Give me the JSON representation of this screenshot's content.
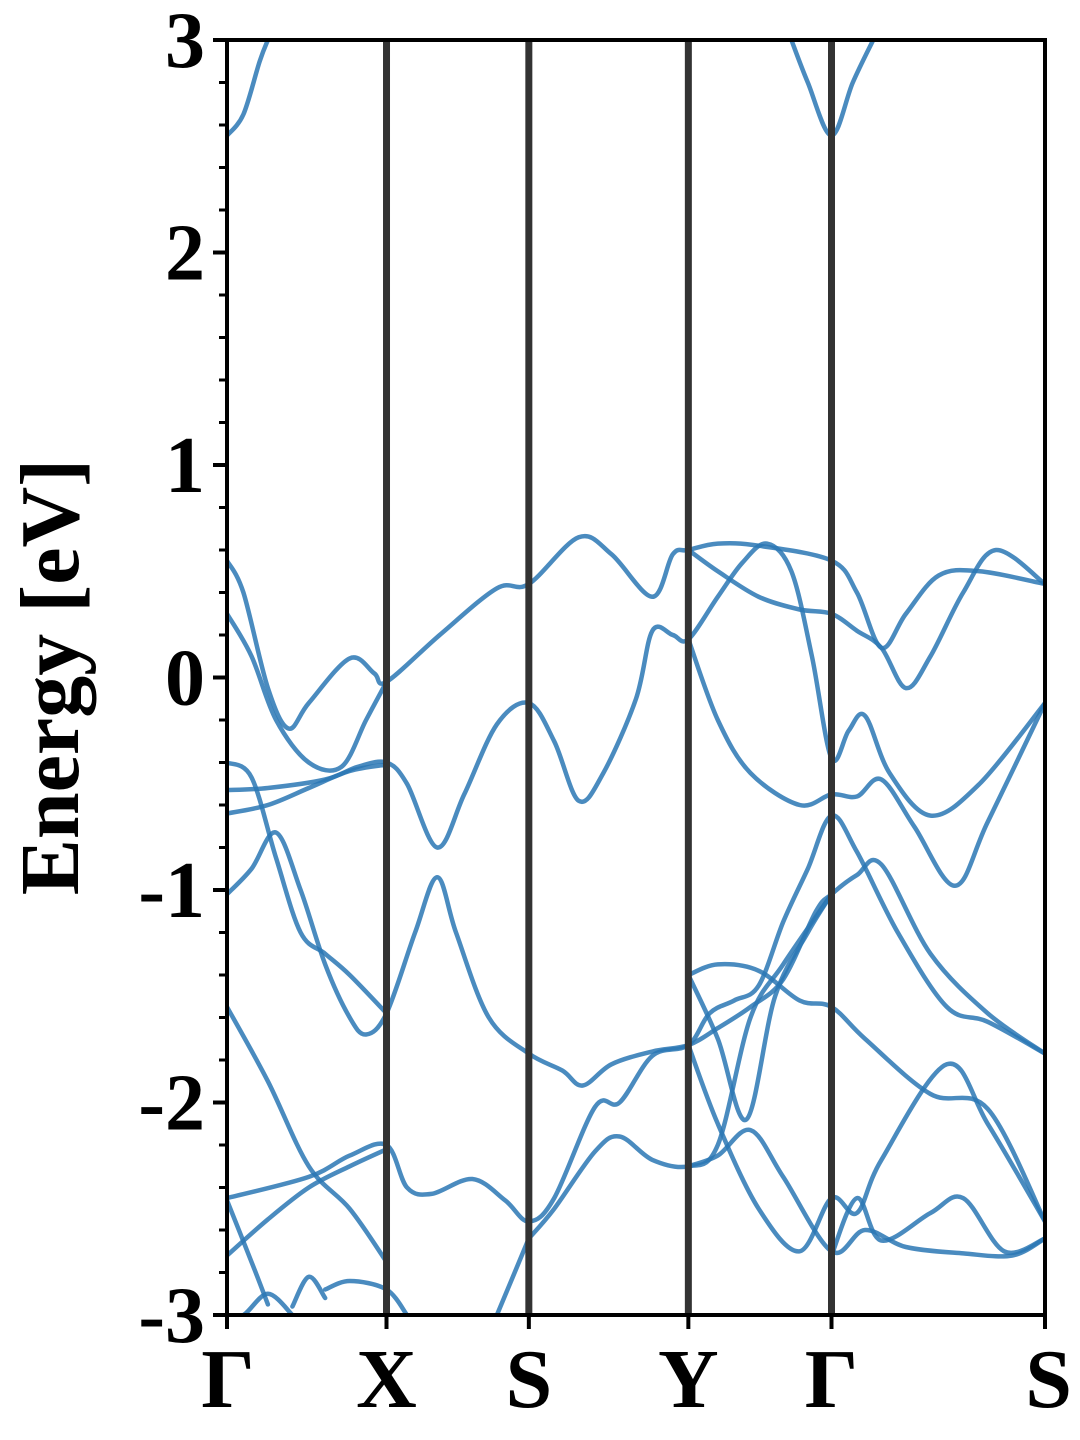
{
  "chart_data": {
    "type": "line",
    "title": "",
    "xlabel": "",
    "ylabel": "Energy [eV]",
    "ylim": [
      -3,
      3
    ],
    "yticks": [
      -3,
      -2,
      -1,
      0,
      1,
      2,
      3
    ],
    "ytick_labels": [
      "-3",
      "-2",
      "-1",
      "0",
      "1",
      "2",
      "3"
    ],
    "xlim": [
      0,
      1
    ],
    "high_symmetry_points": [
      {
        "label": "Γ",
        "x": 0.0
      },
      {
        "label": "X",
        "x": 0.195
      },
      {
        "label": "S",
        "x": 0.369
      },
      {
        "label": "Y",
        "x": 0.564
      },
      {
        "label": "Γ",
        "x": 0.739
      },
      {
        "label": "S",
        "x": 1.0
      }
    ],
    "grid": false,
    "line_color": "#2a77b4",
    "series": [
      {
        "values": [
          [
            0,
            0.55
          ],
          [
            0.02,
            0.4
          ],
          [
            0.05,
            -0.05
          ],
          [
            0.075,
            -0.24
          ],
          [
            0.1,
            -0.12
          ],
          [
            0.15,
            0.09
          ],
          [
            0.18,
            0.02
          ],
          [
            0.195,
            -0.02
          ],
          [
            0.26,
            0.2
          ],
          [
            0.33,
            0.42
          ],
          [
            0.369,
            0.44
          ],
          [
            0.43,
            0.66
          ],
          [
            0.47,
            0.58
          ],
          [
            0.52,
            0.38
          ],
          [
            0.545,
            0.58
          ],
          [
            0.564,
            0.6
          ],
          [
            0.6,
            0.63
          ],
          [
            0.65,
            0.62
          ],
          [
            0.739,
            0.55
          ],
          [
            0.77,
            0.4
          ],
          [
            0.8,
            0.14
          ],
          [
            0.83,
            0.3
          ],
          [
            0.87,
            0.48
          ],
          [
            0.92,
            0.5
          ],
          [
            1.0,
            0.44
          ]
        ]
      },
      {
        "values": [
          [
            0,
            0.3
          ],
          [
            0.03,
            0.1
          ],
          [
            0.06,
            -0.2
          ],
          [
            0.1,
            -0.4
          ],
          [
            0.14,
            -0.42
          ],
          [
            0.17,
            -0.2
          ],
          [
            0.195,
            -0.02
          ]
        ]
      },
      {
        "values": [
          [
            0,
            -0.53
          ],
          [
            0.05,
            -0.52
          ],
          [
            0.12,
            -0.48
          ],
          [
            0.16,
            -0.42
          ],
          [
            0.195,
            -0.4
          ],
          [
            0.22,
            -0.5
          ],
          [
            0.257,
            -0.8
          ],
          [
            0.29,
            -0.55
          ],
          [
            0.33,
            -0.22
          ],
          [
            0.369,
            -0.12
          ],
          [
            0.4,
            -0.3
          ],
          [
            0.43,
            -0.58
          ],
          [
            0.46,
            -0.45
          ],
          [
            0.5,
            -0.1
          ],
          [
            0.52,
            0.22
          ],
          [
            0.545,
            0.2
          ],
          [
            0.564,
            0.18
          ],
          [
            0.6,
            0.38
          ],
          [
            0.63,
            0.54
          ],
          [
            0.66,
            0.63
          ],
          [
            0.69,
            0.5
          ],
          [
            0.715,
            0.1
          ],
          [
            0.739,
            -0.38
          ],
          [
            0.76,
            -0.25
          ],
          [
            0.78,
            -0.18
          ],
          [
            0.81,
            -0.45
          ],
          [
            0.86,
            -0.65
          ],
          [
            0.92,
            -0.5
          ],
          [
            1.0,
            -0.12
          ]
        ]
      },
      {
        "values": [
          [
            0,
            -0.64
          ],
          [
            0.05,
            -0.6
          ],
          [
            0.1,
            -0.52
          ],
          [
            0.15,
            -0.44
          ],
          [
            0.195,
            -0.41
          ]
        ]
      },
      {
        "values": [
          [
            0.564,
            0.6
          ],
          [
            0.6,
            0.5
          ],
          [
            0.65,
            0.38
          ],
          [
            0.7,
            0.32
          ],
          [
            0.739,
            0.3
          ],
          [
            0.77,
            0.22
          ],
          [
            0.8,
            0.14
          ],
          [
            0.83,
            -0.05
          ],
          [
            0.86,
            0.1
          ],
          [
            0.9,
            0.4
          ],
          [
            0.94,
            0.6
          ],
          [
            1.0,
            0.44
          ]
        ]
      },
      {
        "values": [
          [
            0,
            -1.02
          ],
          [
            0.03,
            -0.9
          ],
          [
            0.06,
            -0.73
          ],
          [
            0.09,
            -1.0
          ],
          [
            0.12,
            -1.35
          ],
          [
            0.15,
            -1.6
          ],
          [
            0.17,
            -1.68
          ],
          [
            0.195,
            -1.58
          ],
          [
            0.23,
            -1.2
          ],
          [
            0.257,
            -0.94
          ],
          [
            0.28,
            -1.2
          ],
          [
            0.32,
            -1.6
          ],
          [
            0.369,
            -1.77
          ],
          [
            0.41,
            -1.85
          ],
          [
            0.435,
            -1.92
          ],
          [
            0.47,
            -1.82
          ],
          [
            0.52,
            -1.76
          ],
          [
            0.564,
            -1.73
          ],
          [
            0.6,
            -1.65
          ],
          [
            0.64,
            -1.55
          ],
          [
            0.68,
            -1.42
          ],
          [
            0.72,
            -1.1
          ],
          [
            0.739,
            -1.02
          ],
          [
            0.77,
            -0.93
          ],
          [
            0.8,
            -0.88
          ],
          [
            0.86,
            -1.3
          ],
          [
            0.93,
            -1.58
          ],
          [
            1.0,
            -1.77
          ]
        ]
      },
      {
        "values": [
          [
            0,
            -0.4
          ],
          [
            0.03,
            -0.47
          ],
          [
            0.06,
            -0.85
          ],
          [
            0.09,
            -1.2
          ],
          [
            0.12,
            -1.3
          ],
          [
            0.15,
            -1.4
          ],
          [
            0.195,
            -1.58
          ]
        ]
      },
      {
        "values": [
          [
            0.564,
            0.18
          ],
          [
            0.6,
            -0.2
          ],
          [
            0.64,
            -0.45
          ],
          [
            0.7,
            -0.6
          ],
          [
            0.739,
            -0.55
          ],
          [
            0.77,
            -0.56
          ],
          [
            0.8,
            -0.48
          ],
          [
            0.84,
            -0.7
          ],
          [
            0.89,
            -0.98
          ],
          [
            0.93,
            -0.68
          ],
          [
            1.0,
            -0.12
          ]
        ]
      },
      {
        "values": [
          [
            0,
            -1.55
          ],
          [
            0.05,
            -1.9
          ],
          [
            0.1,
            -2.3
          ],
          [
            0.15,
            -2.5
          ],
          [
            0.195,
            -2.75
          ]
        ]
      },
      {
        "values": [
          [
            0,
            -2.45
          ],
          [
            0.1,
            -2.35
          ],
          [
            0.15,
            -2.25
          ],
          [
            0.195,
            -2.2
          ],
          [
            0.22,
            -2.4
          ],
          [
            0.25,
            -2.43
          ],
          [
            0.3,
            -2.36
          ],
          [
            0.34,
            -2.46
          ],
          [
            0.369,
            -2.56
          ],
          [
            0.4,
            -2.45
          ],
          [
            0.45,
            -2.02
          ],
          [
            0.48,
            -2.0
          ],
          [
            0.52,
            -1.78
          ],
          [
            0.564,
            -1.73
          ],
          [
            0.59,
            -1.58
          ],
          [
            0.62,
            -1.52
          ],
          [
            0.65,
            -1.45
          ],
          [
            0.68,
            -1.15
          ],
          [
            0.71,
            -0.9
          ],
          [
            0.739,
            -0.65
          ],
          [
            0.77,
            -0.82
          ],
          [
            0.82,
            -1.2
          ],
          [
            0.88,
            -1.55
          ],
          [
            0.93,
            -1.62
          ],
          [
            1.0,
            -1.77
          ]
        ]
      },
      {
        "values": [
          [
            0,
            -2.72
          ],
          [
            0.05,
            -2.55
          ],
          [
            0.1,
            -2.4
          ],
          [
            0.15,
            -2.3
          ],
          [
            0.195,
            -2.22
          ]
        ]
      },
      {
        "values": [
          [
            0.369,
            -2.64
          ],
          [
            0.4,
            -2.5
          ],
          [
            0.45,
            -2.23
          ],
          [
            0.48,
            -2.16
          ],
          [
            0.52,
            -2.27
          ],
          [
            0.564,
            -2.3
          ],
          [
            0.6,
            -2.2
          ],
          [
            0.64,
            -1.6
          ],
          [
            0.68,
            -1.35
          ],
          [
            0.739,
            -1.02
          ]
        ]
      },
      {
        "values": [
          [
            0.564,
            -1.4
          ],
          [
            0.6,
            -1.35
          ],
          [
            0.65,
            -1.38
          ],
          [
            0.7,
            -1.52
          ],
          [
            0.739,
            -1.55
          ],
          [
            0.78,
            -1.7
          ],
          [
            0.86,
            -1.96
          ],
          [
            0.93,
            -2.03
          ],
          [
            1.0,
            -2.56
          ]
        ]
      },
      {
        "values": [
          [
            0.564,
            -1.4
          ],
          [
            0.6,
            -1.7
          ],
          [
            0.635,
            -2.08
          ],
          [
            0.67,
            -1.5
          ],
          [
            0.71,
            -1.2
          ],
          [
            0.739,
            -1.02
          ]
        ]
      },
      {
        "values": [
          [
            0.564,
            -1.73
          ],
          [
            0.6,
            -2.1
          ],
          [
            0.65,
            -2.5
          ],
          [
            0.7,
            -2.7
          ],
          [
            0.739,
            -2.45
          ],
          [
            0.77,
            -2.52
          ],
          [
            0.8,
            -2.27
          ],
          [
            0.88,
            -1.82
          ],
          [
            0.93,
            -2.1
          ],
          [
            1.0,
            -2.56
          ]
        ]
      },
      {
        "values": [
          [
            0.564,
            -2.3
          ],
          [
            0.6,
            -2.25
          ],
          [
            0.64,
            -2.13
          ],
          [
            0.68,
            -2.35
          ],
          [
            0.739,
            -2.7
          ],
          [
            0.78,
            -2.6
          ],
          [
            0.83,
            -2.68
          ],
          [
            0.9,
            -2.71
          ],
          [
            0.96,
            -2.72
          ],
          [
            1.0,
            -2.64
          ]
        ]
      },
      {
        "values": [
          [
            0,
            -2.46
          ],
          [
            0.03,
            -2.75
          ],
          [
            0.05,
            -2.95
          ]
        ]
      },
      {
        "values": [
          [
            0,
            -3.0
          ],
          [
            0.02,
            -3.0
          ],
          [
            0.05,
            -2.9
          ],
          [
            0.08,
            -3.0
          ]
        ]
      },
      {
        "values": [
          [
            0.08,
            -2.96
          ],
          [
            0.1,
            -2.82
          ],
          [
            0.12,
            -2.92
          ]
        ]
      },
      {
        "values": [
          [
            0.12,
            -2.88
          ],
          [
            0.15,
            -2.84
          ],
          [
            0.195,
            -2.88
          ],
          [
            0.22,
            -3.0
          ]
        ]
      },
      {
        "values": [
          [
            0.33,
            -3.0
          ],
          [
            0.369,
            -2.64
          ]
        ]
      },
      {
        "values": [
          [
            0.739,
            -2.72
          ],
          [
            0.77,
            -2.45
          ],
          [
            0.8,
            -2.65
          ],
          [
            0.86,
            -2.52
          ],
          [
            0.9,
            -2.45
          ],
          [
            0.95,
            -2.7
          ],
          [
            1.0,
            -2.64
          ]
        ]
      },
      {
        "values": [
          [
            0,
            2.55
          ],
          [
            0.02,
            2.65
          ],
          [
            0.04,
            2.9
          ],
          [
            0.05,
            3.0
          ]
        ]
      },
      {
        "values": [
          [
            0.69,
            3.0
          ],
          [
            0.71,
            2.8
          ],
          [
            0.739,
            2.55
          ],
          [
            0.765,
            2.8
          ],
          [
            0.79,
            3.0
          ]
        ]
      }
    ]
  }
}
